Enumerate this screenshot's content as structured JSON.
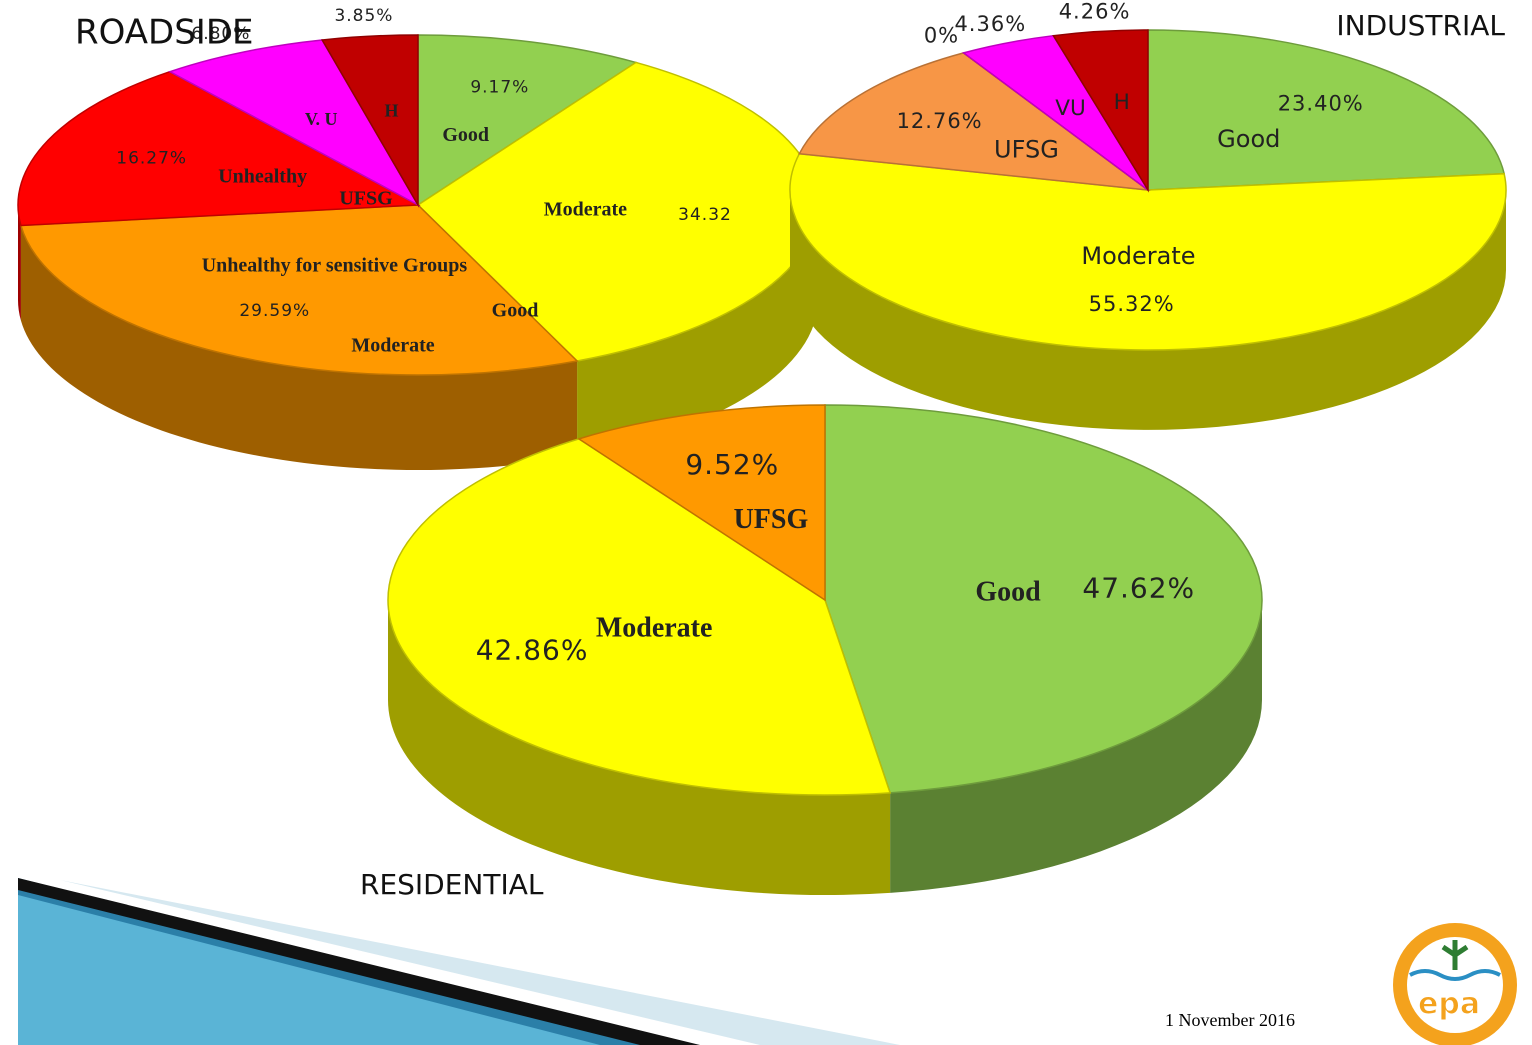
{
  "chart_data": [
    {
      "type": "pie3d",
      "title": "ROADSIDE",
      "categories": [
        "Good",
        "Moderate",
        "Unhealthy for sensitive Groups",
        "Unhealthy",
        "V. U",
        "H"
      ],
      "values": [
        9.17,
        34.32,
        29.59,
        16.27,
        6.8,
        3.85
      ],
      "value_labels": [
        "9.17%",
        "34.32",
        "29.59%",
        "16.27%",
        "6.80%",
        "3.85%"
      ],
      "colors": [
        "#92d050",
        "#ffff00",
        "#ff9900",
        "#ff0000",
        "#ff00ff",
        "#c00000"
      ],
      "annotations": [
        "UFSG",
        "Good",
        "Moderate"
      ]
    },
    {
      "type": "pie3d",
      "title": "INDUSTRIAL",
      "categories": [
        "Good",
        "Moderate",
        "UFSG",
        null,
        "VU",
        "H"
      ],
      "values": [
        23.4,
        55.32,
        12.76,
        0,
        4.36,
        4.26
      ],
      "value_labels": [
        "23.40%",
        "55.32%",
        "12.76%",
        "0%",
        "4.36%",
        "4.26%"
      ],
      "colors": [
        "#92d050",
        "#ffff00",
        "#f79646",
        "#ff0000",
        "#ff00ff",
        "#c00000"
      ]
    },
    {
      "type": "pie3d",
      "title": "RESIDENTIAL",
      "categories": [
        "Good",
        "Moderate",
        "UFSG"
      ],
      "values": [
        47.62,
        42.86,
        9.52
      ],
      "value_labels": [
        "47.62%",
        "42.86%",
        "9.52%"
      ],
      "colors": [
        "#92d050",
        "#ffff00",
        "#ff9900"
      ]
    }
  ],
  "footer": {
    "date": "1 November 2016",
    "logo": "epa"
  }
}
